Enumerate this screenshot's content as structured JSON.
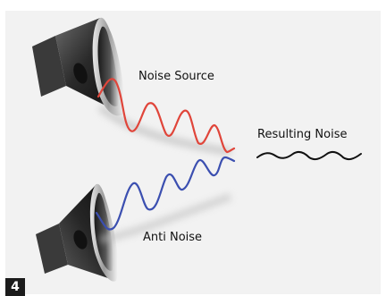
{
  "labels": {
    "noise_source": "Noise Source",
    "anti_noise": "Anti Noise",
    "resulting_noise": "Resulting Noise"
  },
  "badge": "4",
  "icons": {
    "top_speaker": "speaker-icon",
    "bottom_speaker": "speaker-icon"
  },
  "colors": {
    "noise_wave": "#e0453a",
    "anti_noise_wave": "#3b4fb0",
    "result_wave": "#111111",
    "panel": "#f2f2f2",
    "badge": "#1b1b1b"
  }
}
